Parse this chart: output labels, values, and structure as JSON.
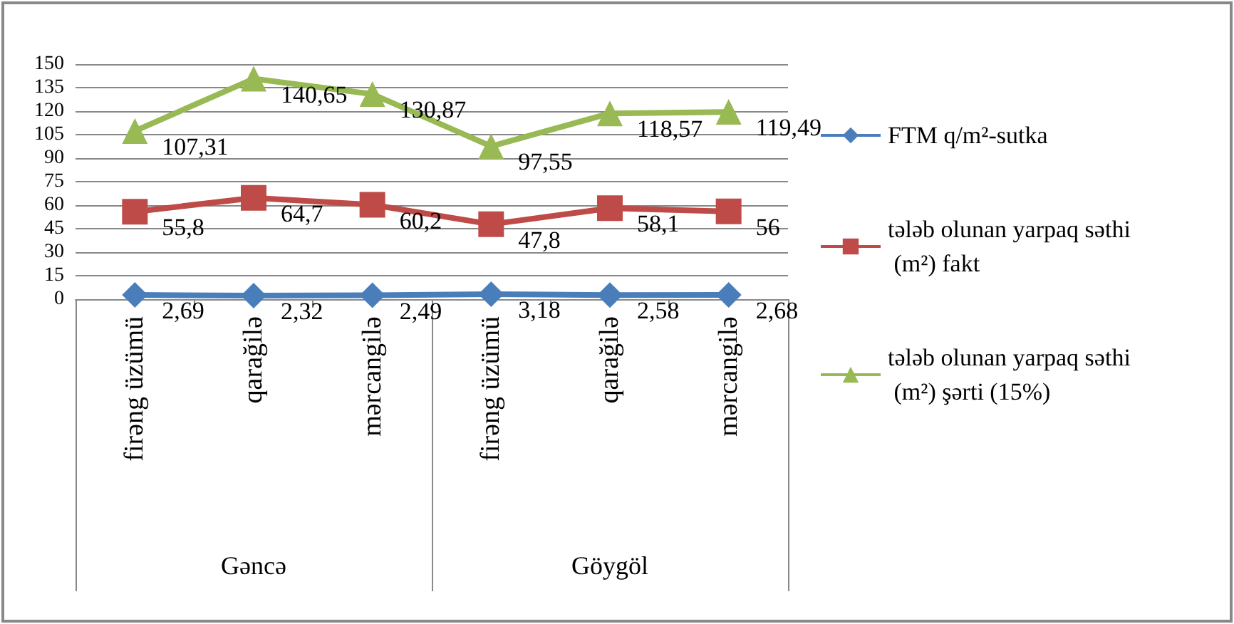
{
  "chart_data": {
    "type": "line",
    "categories": [
      "firəng üzümü",
      "qarağilə",
      "mərcangilə",
      "firəng üzümü",
      "qarağilə",
      "mərcangilə"
    ],
    "annotations": [
      "Gəncə",
      "Göygöl"
    ],
    "ylim": [
      0,
      150
    ],
    "yticks": [
      0,
      15,
      30,
      45,
      60,
      75,
      90,
      105,
      120,
      135,
      150
    ],
    "grid": "y",
    "legend": "right",
    "series": [
      {
        "name": "FTM q/m²-sutka",
        "color": "#4a7ebb",
        "marker": "diamond",
        "values": [
          2.69,
          2.32,
          2.49,
          3.18,
          2.58,
          2.68
        ],
        "value_labels": [
          "2,69",
          "2,32",
          "2,49",
          "3,18",
          "2,58",
          "2,68"
        ]
      },
      {
        "name": "tələb olunan yarpaq səthi (m²) fakt",
        "color": "#be4b48",
        "marker": "square",
        "values": [
          55.8,
          64.7,
          60.2,
          47.8,
          58.1,
          56
        ],
        "value_labels": [
          "55,8",
          "64,7",
          "60,2",
          "47,8",
          "58,1",
          "56"
        ]
      },
      {
        "name": "tələb olunan yarpaq səthi (m²) şərti (15%)",
        "color": "#98b954",
        "marker": "triangle",
        "values": [
          107.31,
          140.65,
          130.87,
          97.55,
          118.57,
          119.49
        ],
        "value_labels": [
          "107,31",
          "140,65",
          "130,87",
          "97,55",
          "118,57",
          "119,49"
        ]
      }
    ]
  }
}
